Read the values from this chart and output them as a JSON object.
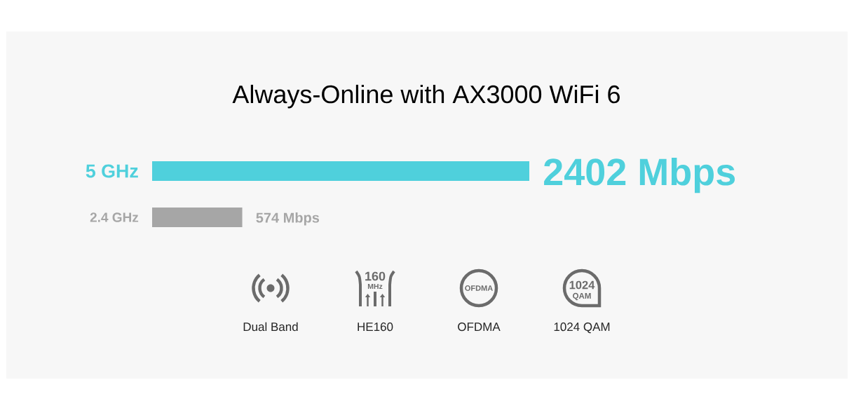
{
  "chart_data": {
    "type": "bar",
    "title": "Always-Online with AX3000 WiFi 6",
    "orientation": "horizontal",
    "categories": [
      "5 GHz",
      "2.4 GHz"
    ],
    "values": [
      2402,
      574
    ],
    "colors": [
      "#4fd0dc",
      "#a6a6a6"
    ],
    "value_labels": [
      "2402 Mbps",
      "574 Mbps"
    ],
    "xlim": [
      0,
      2402
    ],
    "tick_labels": "y",
    "annotations": [
      "Dual Band",
      "HE160",
      "OFDMA",
      "1024 QAM",
      "160",
      "MHz",
      "OFDMA",
      "1024",
      "QAM"
    ]
  }
}
